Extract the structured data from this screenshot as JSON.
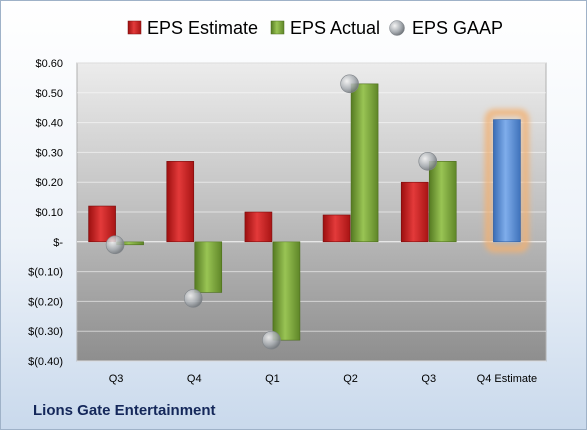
{
  "company": "Lions Gate Entertainment",
  "chart_data": {
    "type": "bar",
    "categories": [
      "Q3",
      "Q4",
      "Q1",
      "Q2",
      "Q3",
      "Q4 Estimate"
    ],
    "series": [
      {
        "name": "EPS Estimate",
        "color": "#cc1f1f",
        "values": [
          0.12,
          0.27,
          0.1,
          0.09,
          0.2,
          null
        ]
      },
      {
        "name": "EPS Actual",
        "color": "#7aa63a",
        "values": [
          -0.01,
          -0.17,
          -0.33,
          0.53,
          0.27,
          null
        ]
      },
      {
        "name": "EPS GAAP",
        "marker": "sphere",
        "color": "#a8aeb4",
        "values": [
          -0.01,
          -0.19,
          -0.33,
          0.53,
          0.27,
          null
        ]
      }
    ],
    "estimate_bar": {
      "category": "Q4 Estimate",
      "value": 0.41,
      "color": "#5b8fd6",
      "highlight": "#f2b072"
    },
    "ylim": [
      -0.4,
      0.6
    ],
    "yticks": [
      0.6,
      0.5,
      0.4,
      0.3,
      0.2,
      0.1,
      0,
      -0.1,
      -0.2,
      -0.3,
      -0.4
    ],
    "ytick_labels": [
      "$0.60",
      "$0.50",
      "$0.40",
      "$0.30",
      "$0.20",
      "$0.10",
      "$-",
      "$(0.10)",
      "$(0.20)",
      "$(0.30)",
      "$(0.40)"
    ],
    "grid": true,
    "legend": "top"
  }
}
